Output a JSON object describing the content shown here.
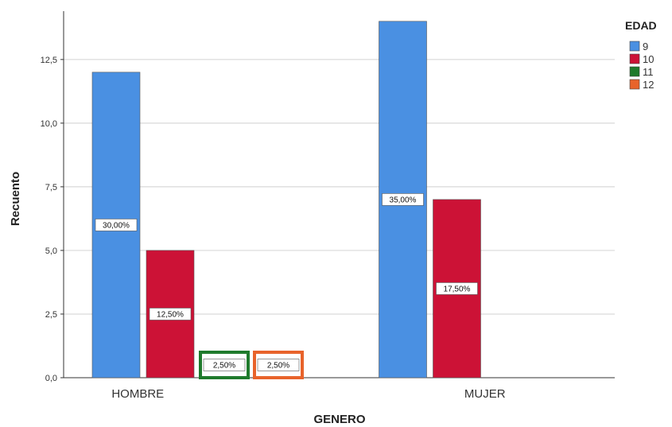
{
  "chart_data": {
    "type": "bar",
    "xlabel": "GENERO",
    "ylabel": "Recuento",
    "ylim": [
      0,
      14.4
    ],
    "yticks": [
      "0,0",
      "2,5",
      "5,0",
      "7,5",
      "10,0",
      "12,5"
    ],
    "ytick_values": [
      0,
      2.5,
      5,
      7.5,
      10,
      12.5
    ],
    "grid": true,
    "categories": [
      "HOMBRE",
      "MUJER"
    ],
    "legend": {
      "title": "EDAD",
      "position": "top-right"
    },
    "series": [
      {
        "name": "9",
        "color": "#4a90e2",
        "values": [
          12,
          14
        ],
        "labels": [
          "30,00%",
          "35,00%"
        ]
      },
      {
        "name": "10",
        "color": "#cc1236",
        "values": [
          5,
          7
        ],
        "labels": [
          "12,50%",
          "17,50%"
        ]
      },
      {
        "name": "11",
        "color": "#1f7a2c",
        "values": [
          1,
          0
        ],
        "labels": [
          "2,50%",
          ""
        ]
      },
      {
        "name": "12",
        "color": "#e8632b",
        "values": [
          1,
          0
        ],
        "labels": [
          "2,50%",
          ""
        ]
      }
    ]
  }
}
